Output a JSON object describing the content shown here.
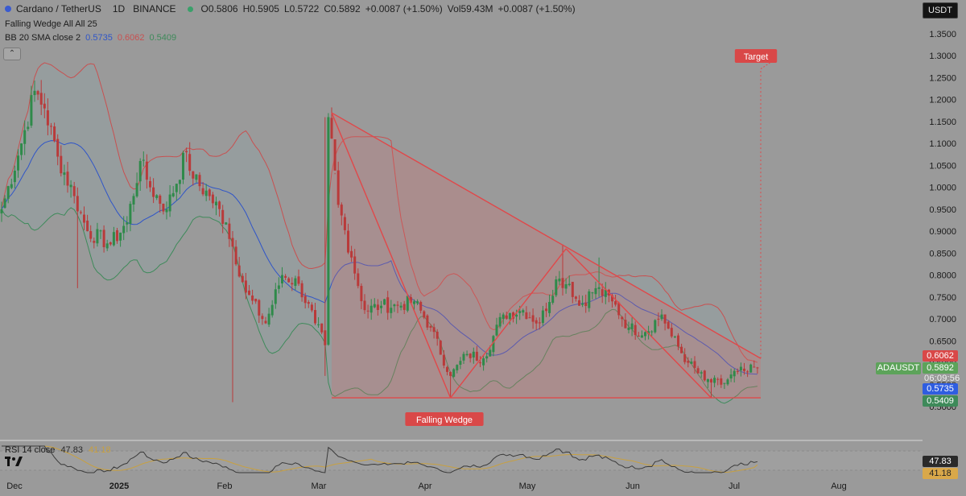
{
  "header": {
    "symbol": "Cardano / TetherUS",
    "interval": "1D",
    "exchange": "BINANCE",
    "ohlc": {
      "open": "O0.5806",
      "high": "H0.5905",
      "low": "L0.5722",
      "close": "C0.5892",
      "change": "+0.0087 (+1.50%)",
      "volume": "Vol59.43M",
      "volume_change": "+0.0087 (+1.50%)"
    },
    "indicator_name": "Falling Wedge All All 25",
    "bb_label": "BB 20 SMA close 2",
    "bb_basis": "0.5735",
    "bb_upper": "0.6062",
    "bb_lower": "0.5409",
    "collapse_icon": "chevron-up-icon"
  },
  "toolbar": {
    "currency": "USDT"
  },
  "annotations": {
    "target_label": "Target",
    "pattern_label": "Falling Wedge"
  },
  "price_tags": {
    "upper": "0.6062",
    "last": "0.5892",
    "basis": "0.5735",
    "lower": "0.5409",
    "symbol": "ADAUSDT",
    "countdown": "06:09:56",
    "rsi_value": "47.83",
    "rsi_ma_value": "41.18"
  },
  "rsi": {
    "label": "RSI 14 close",
    "value": "47.83",
    "ma_value": "41.18"
  },
  "colors": {
    "background": "#9a9a9a",
    "bull": "#2f8a4a",
    "bear": "#b93a3a",
    "bb_basis": "#2f55c8",
    "bb_upper": "#c85050",
    "bb_lower": "#3e8a5a",
    "wedge": "#e0484a",
    "rsi_line": "#3a3a3a",
    "rsi_ma": "#c8a040",
    "axis_text": "#1a1a1a"
  },
  "chart_data": {
    "type": "candlestick",
    "title": "Cardano / TetherUS",
    "x_axis_labels": [
      "Dec",
      "2025",
      "Feb",
      "Mar",
      "Apr",
      "May",
      "Jun",
      "Jul",
      "Aug"
    ],
    "y_ticks": [
      "1.3500",
      "1.3000",
      "1.2500",
      "1.2000",
      "1.1500",
      "1.1000",
      "1.0500",
      "1.0000",
      "0.9500",
      "0.9000",
      "0.8500",
      "0.8000",
      "0.7500",
      "0.7000",
      "0.6500",
      "0.6000",
      "0.5500",
      "0.5000"
    ],
    "ylim": [
      0.45,
      1.38
    ],
    "anchors": [
      {
        "day": 0,
        "price": 0.95
      },
      {
        "day": 6,
        "price": 1.1
      },
      {
        "day": 10,
        "price": 1.22
      },
      {
        "day": 13,
        "price": 1.18
      },
      {
        "day": 17,
        "price": 1.07
      },
      {
        "day": 22,
        "price": 0.98
      },
      {
        "day": 26,
        "price": 0.9
      },
      {
        "day": 33,
        "price": 0.87
      },
      {
        "day": 38,
        "price": 0.92
      },
      {
        "day": 42,
        "price": 1.06
      },
      {
        "day": 45,
        "price": 1.0
      },
      {
        "day": 50,
        "price": 0.95
      },
      {
        "day": 56,
        "price": 1.08
      },
      {
        "day": 58,
        "price": 1.02
      },
      {
        "day": 63,
        "price": 0.98
      },
      {
        "day": 68,
        "price": 0.92
      },
      {
        "day": 74,
        "price": 0.76
      },
      {
        "day": 80,
        "price": 0.69
      },
      {
        "day": 85,
        "price": 0.8
      },
      {
        "day": 90,
        "price": 0.78
      },
      {
        "day": 95,
        "price": 0.69
      },
      {
        "day": 98,
        "price": 0.64
      },
      {
        "day": 99,
        "price": 1.16
      },
      {
        "day": 102,
        "price": 0.96
      },
      {
        "day": 106,
        "price": 0.84
      },
      {
        "day": 110,
        "price": 0.72
      },
      {
        "day": 115,
        "price": 0.73
      },
      {
        "day": 120,
        "price": 0.73
      },
      {
        "day": 125,
        "price": 0.74
      },
      {
        "day": 130,
        "price": 0.68
      },
      {
        "day": 136,
        "price": 0.57
      },
      {
        "day": 141,
        "price": 0.62
      },
      {
        "day": 146,
        "price": 0.61
      },
      {
        "day": 152,
        "price": 0.71
      },
      {
        "day": 158,
        "price": 0.72
      },
      {
        "day": 163,
        "price": 0.69
      },
      {
        "day": 168,
        "price": 0.79
      },
      {
        "day": 172,
        "price": 0.78
      },
      {
        "day": 175,
        "price": 0.73
      },
      {
        "day": 180,
        "price": 0.77
      },
      {
        "day": 185,
        "price": 0.74
      },
      {
        "day": 190,
        "price": 0.68
      },
      {
        "day": 195,
        "price": 0.67
      },
      {
        "day": 200,
        "price": 0.71
      },
      {
        "day": 203,
        "price": 0.66
      },
      {
        "day": 208,
        "price": 0.6
      },
      {
        "day": 213,
        "price": 0.56
      },
      {
        "day": 218,
        "price": 0.55
      },
      {
        "day": 223,
        "price": 0.58
      },
      {
        "day": 226,
        "price": 0.58
      },
      {
        "day": 229,
        "price": 0.5892
      }
    ],
    "wicks": [
      {
        "day": 23,
        "low": 0.77
      },
      {
        "day": 70,
        "low": 0.51
      },
      {
        "day": 98,
        "low": 0.57,
        "high": 1.16
      },
      {
        "day": 101,
        "high": 1.03
      },
      {
        "day": 136,
        "low": 0.52
      },
      {
        "day": 170,
        "high": 0.87
      },
      {
        "day": 181,
        "high": 0.84
      },
      {
        "day": 215,
        "low": 0.52
      }
    ],
    "wedge": {
      "upper_line": [
        {
          "day": 100,
          "price": 1.17
        },
        {
          "day": 230,
          "price": 0.61
        }
      ],
      "lower_line": [
        {
          "day": 100,
          "price": 0.52
        },
        {
          "day": 230,
          "price": 0.52
        }
      ],
      "zigzag": [
        {
          "day": 100,
          "price": 1.17
        },
        {
          "day": 136,
          "price": 0.52
        },
        {
          "day": 171,
          "price": 0.86
        },
        {
          "day": 215,
          "price": 0.52
        }
      ],
      "target_line": [
        {
          "day": 230,
          "price": 0.61
        },
        {
          "day": 230,
          "price": 1.27
        }
      ]
    },
    "rsi": {
      "value": 47.83,
      "ma": 41.18
    }
  }
}
